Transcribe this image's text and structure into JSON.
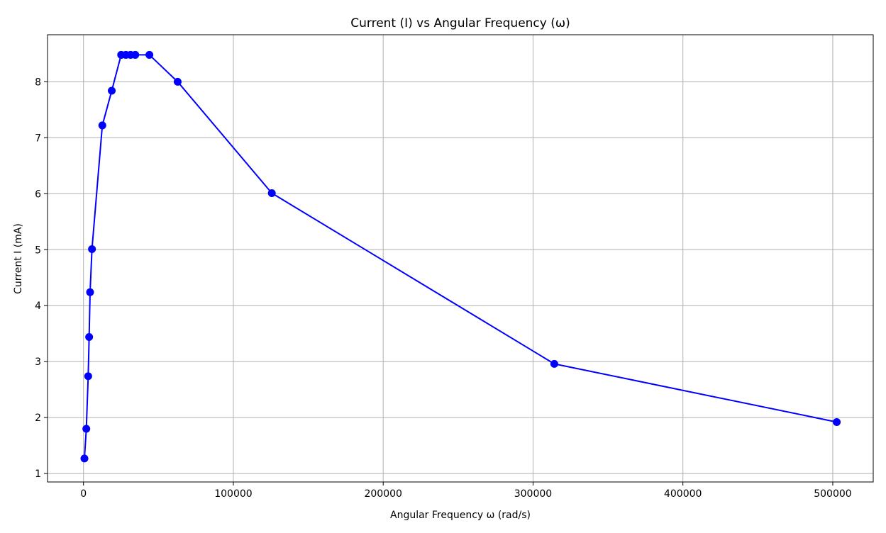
{
  "chart_data": {
    "type": "line",
    "title": "Current (I) vs Angular Frequency (ω)",
    "xlabel": "Angular Frequency ω (rad/s)",
    "ylabel": "Current I (mA)",
    "xlim": [
      -24000,
      527000
    ],
    "ylim": [
      0.85,
      8.84
    ],
    "xticks": [
      0,
      100000,
      200000,
      300000,
      400000,
      500000
    ],
    "xtick_labels": [
      "0",
      "100000",
      "200000",
      "300000",
      "400000",
      "500000"
    ],
    "yticks": [
      1,
      2,
      3,
      4,
      5,
      6,
      7,
      8
    ],
    "ytick_labels": [
      "1",
      "2",
      "3",
      "4",
      "5",
      "6",
      "7",
      "8"
    ],
    "grid": true,
    "legend": false,
    "series": [
      {
        "color": "#0000ff",
        "marker": "circle",
        "x": [
          628,
          1885,
          3142,
          3770,
          4398,
          5655,
          12566,
          18850,
          25133,
          28274,
          31416,
          34558,
          43982,
          62832,
          125664,
          314159,
          502655
        ],
        "y": [
          1.27,
          1.8,
          2.74,
          3.44,
          4.24,
          5.01,
          7.22,
          7.84,
          8.48,
          8.48,
          8.48,
          8.48,
          8.48,
          8.0,
          6.01,
          2.96,
          1.92
        ]
      }
    ]
  }
}
